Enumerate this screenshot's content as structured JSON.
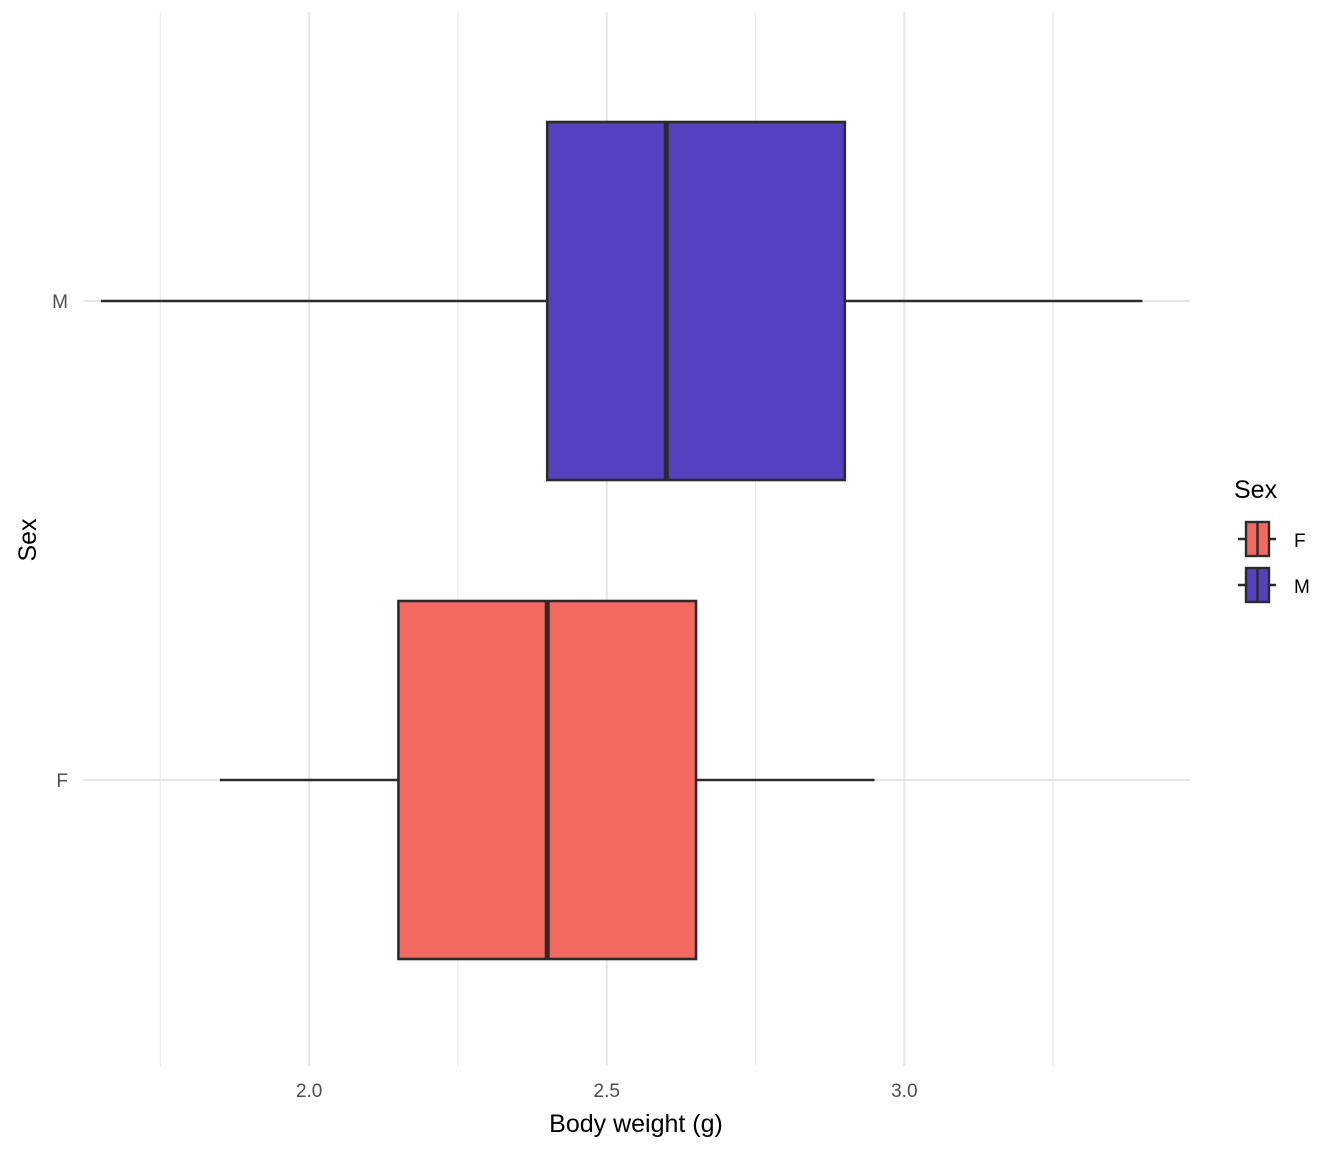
{
  "chart_data": {
    "type": "boxplot",
    "orientation": "horizontal",
    "xlabel": "Body weight (g)",
    "ylabel": "Sex",
    "xlim": [
      1.62,
      3.48
    ],
    "x_ticks": [
      2.0,
      2.5,
      3.0
    ],
    "x_tick_labels": [
      "2.0",
      "2.5",
      "3.0"
    ],
    "x_minor_gridlines": [
      1.75,
      2.25,
      2.75,
      3.25
    ],
    "categories": [
      "F",
      "M"
    ],
    "series": [
      {
        "name": "F",
        "color": "#F4695F",
        "whisker_low": 1.85,
        "q1": 2.15,
        "median": 2.4,
        "q3": 2.65,
        "whisker_high": 2.95
      },
      {
        "name": "M",
        "color": "#5541C0",
        "whisker_low": 1.65,
        "q1": 2.4,
        "median": 2.6,
        "q3": 2.9,
        "whisker_high": 3.4
      }
    ],
    "legend": {
      "title": "Sex",
      "position": "right",
      "entries": [
        "F",
        "M"
      ]
    },
    "grid": true,
    "line_color": "#2b2b2b"
  }
}
